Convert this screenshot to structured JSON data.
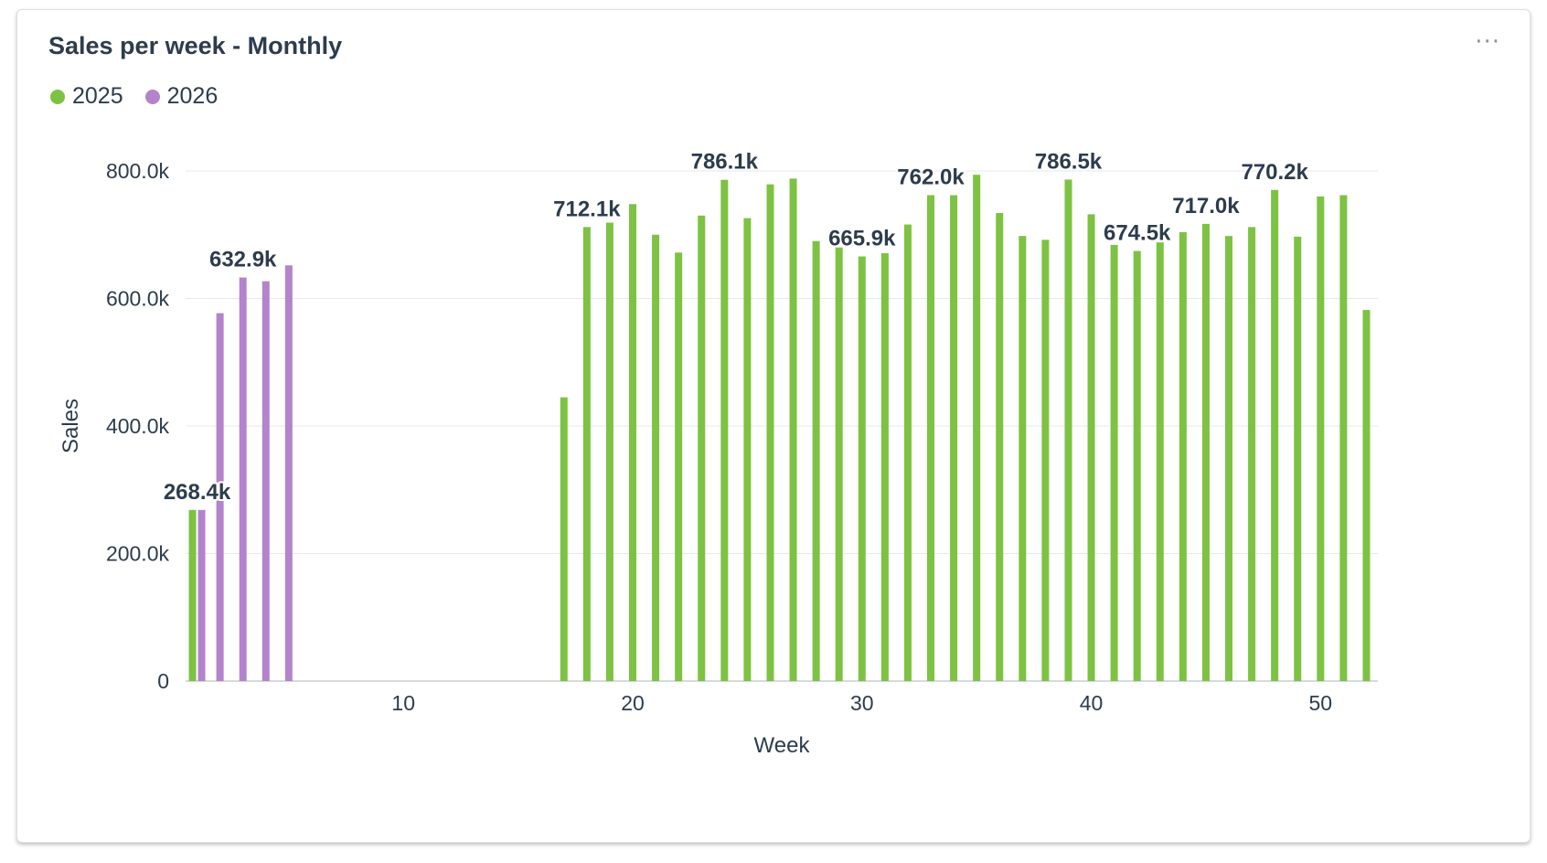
{
  "card": {
    "title": "Sales per week - Monthly",
    "more_icon": "ellipsis-icon",
    "more_glyph": "···"
  },
  "chart_data": {
    "type": "bar",
    "title": "Sales per week - Monthly",
    "xlabel": "Week",
    "ylabel": "Sales",
    "xlim": [
      0.5,
      52.5
    ],
    "ylim": [
      0,
      800000
    ],
    "x_ticks": [
      10,
      20,
      30,
      40,
      50
    ],
    "y_ticks": [
      0,
      200000,
      400000,
      600000,
      800000
    ],
    "y_tick_labels": [
      "0",
      "200.0k",
      "400.0k",
      "600.0k",
      "800.0k"
    ],
    "grid": true,
    "legend_position": "top-left",
    "series": [
      {
        "name": "2025",
        "color": "#7dc242",
        "points": [
          {
            "x": 1,
            "y": 268400
          },
          {
            "x": 17,
            "y": 445000
          },
          {
            "x": 18,
            "y": 712100
          },
          {
            "x": 19,
            "y": 719000
          },
          {
            "x": 20,
            "y": 748000
          },
          {
            "x": 21,
            "y": 700000
          },
          {
            "x": 22,
            "y": 672000
          },
          {
            "x": 23,
            "y": 730000
          },
          {
            "x": 24,
            "y": 786100
          },
          {
            "x": 25,
            "y": 726000
          },
          {
            "x": 26,
            "y": 779000
          },
          {
            "x": 27,
            "y": 788000
          },
          {
            "x": 28,
            "y": 690000
          },
          {
            "x": 29,
            "y": 680000
          },
          {
            "x": 30,
            "y": 665900
          },
          {
            "x": 31,
            "y": 671000
          },
          {
            "x": 32,
            "y": 716000
          },
          {
            "x": 33,
            "y": 762000
          },
          {
            "x": 34,
            "y": 762000
          },
          {
            "x": 35,
            "y": 794000
          },
          {
            "x": 36,
            "y": 734000
          },
          {
            "x": 37,
            "y": 698000
          },
          {
            "x": 38,
            "y": 692000
          },
          {
            "x": 39,
            "y": 786500
          },
          {
            "x": 40,
            "y": 732000
          },
          {
            "x": 41,
            "y": 684000
          },
          {
            "x": 42,
            "y": 674500
          },
          {
            "x": 43,
            "y": 688000
          },
          {
            "x": 44,
            "y": 704000
          },
          {
            "x": 45,
            "y": 717000
          },
          {
            "x": 46,
            "y": 698000
          },
          {
            "x": 47,
            "y": 712000
          },
          {
            "x": 48,
            "y": 770200
          },
          {
            "x": 49,
            "y": 697000
          },
          {
            "x": 50,
            "y": 760000
          },
          {
            "x": 51,
            "y": 762000
          },
          {
            "x": 52,
            "y": 582000
          }
        ]
      },
      {
        "name": "2026",
        "color": "#b383cc",
        "points": [
          {
            "x": 1,
            "y": 268400
          },
          {
            "x": 2,
            "y": 577000
          },
          {
            "x": 3,
            "y": 632900
          },
          {
            "x": 4,
            "y": 627000
          },
          {
            "x": 5,
            "y": 652000
          }
        ]
      }
    ],
    "data_labels": [
      {
        "x": 1,
        "y": 268400,
        "text": "268.4k"
      },
      {
        "x": 3,
        "y": 632900,
        "text": "632.9k"
      },
      {
        "x": 18,
        "y": 712100,
        "text": "712.1k"
      },
      {
        "x": 24,
        "y": 786100,
        "text": "786.1k"
      },
      {
        "x": 30,
        "y": 665900,
        "text": "665.9k"
      },
      {
        "x": 33,
        "y": 762000,
        "text": "762.0k"
      },
      {
        "x": 39,
        "y": 786500,
        "text": "786.5k"
      },
      {
        "x": 42,
        "y": 674500,
        "text": "674.5k"
      },
      {
        "x": 45,
        "y": 717000,
        "text": "717.0k"
      },
      {
        "x": 48,
        "y": 770200,
        "text": "770.2k"
      }
    ]
  }
}
